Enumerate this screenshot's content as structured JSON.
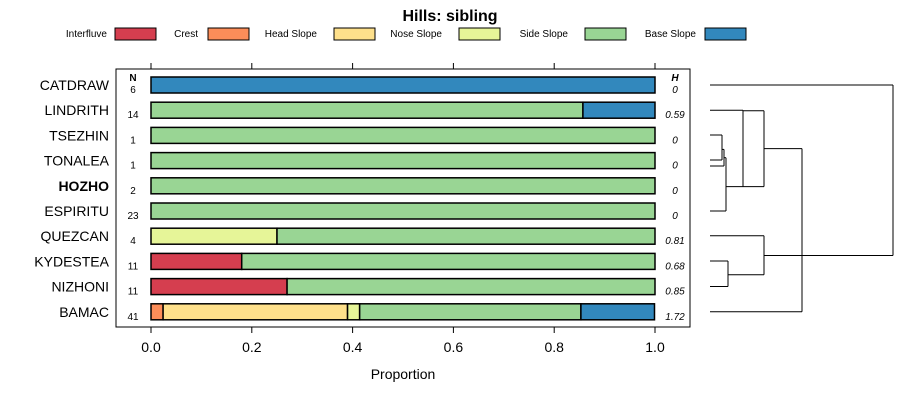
{
  "chart_data": {
    "type": "bar",
    "stacked": true,
    "orientation": "horizontal",
    "title": "Hills: sibling",
    "xlabel": "Proportion",
    "ylabel": "",
    "xlim": [
      0,
      1
    ],
    "xticks": [
      0,
      0.2,
      0.4,
      0.6,
      0.8,
      1
    ],
    "xtick_labels": [
      "0.0",
      "0.2",
      "0.4",
      "0.6",
      "0.8",
      "1.0"
    ],
    "legend_position": "top",
    "column_headers": {
      "n": "N",
      "h": "H"
    },
    "legend": [
      {
        "name": "Interfluve",
        "color": "#d53e4f"
      },
      {
        "name": "Crest",
        "color": "#fc8d59"
      },
      {
        "name": "Head Slope",
        "color": "#fee08b"
      },
      {
        "name": "Nose Slope",
        "color": "#e6f598"
      },
      {
        "name": "Side Slope",
        "color": "#99d594"
      },
      {
        "name": "Base Slope",
        "color": "#3288bd"
      }
    ],
    "categories": [
      "CATDRAW",
      "LINDRITH",
      "TSEZHIN",
      "TONALEA",
      "HOZHO",
      "ESPIRITU",
      "QUEZCAN",
      "KYDESTEA",
      "NIZHONI",
      "BAMAC"
    ],
    "highlighted": "HOZHO",
    "n": [
      "6",
      "14",
      "1",
      "1",
      "2",
      "23",
      "4",
      "11",
      "11",
      "41"
    ],
    "h": [
      "0",
      "0.59",
      "0",
      "0",
      "0",
      "0",
      "0.81",
      "0.68",
      "0.85",
      "1.72"
    ],
    "series": [
      {
        "name": "Interfluve",
        "values": [
          0,
          0,
          0,
          0,
          0,
          0,
          0,
          0.18,
          0.27,
          0
        ]
      },
      {
        "name": "Crest",
        "values": [
          0,
          0,
          0,
          0,
          0,
          0,
          0,
          0,
          0,
          0.024
        ]
      },
      {
        "name": "Head Slope",
        "values": [
          0,
          0,
          0,
          0,
          0,
          0,
          0,
          0,
          0,
          0.366
        ]
      },
      {
        "name": "Nose Slope",
        "values": [
          0,
          0,
          0,
          0,
          0,
          0,
          0.25,
          0,
          0,
          0.024
        ]
      },
      {
        "name": "Side Slope",
        "values": [
          0,
          0.857,
          1,
          1,
          1,
          1,
          0.75,
          0.82,
          0.73,
          0.439
        ]
      },
      {
        "name": "Base Slope",
        "values": [
          1,
          0.143,
          0,
          0,
          0,
          0,
          0,
          0,
          0,
          0.146
        ]
      }
    ],
    "dendrogram": "hierarchical clustering of rows"
  }
}
